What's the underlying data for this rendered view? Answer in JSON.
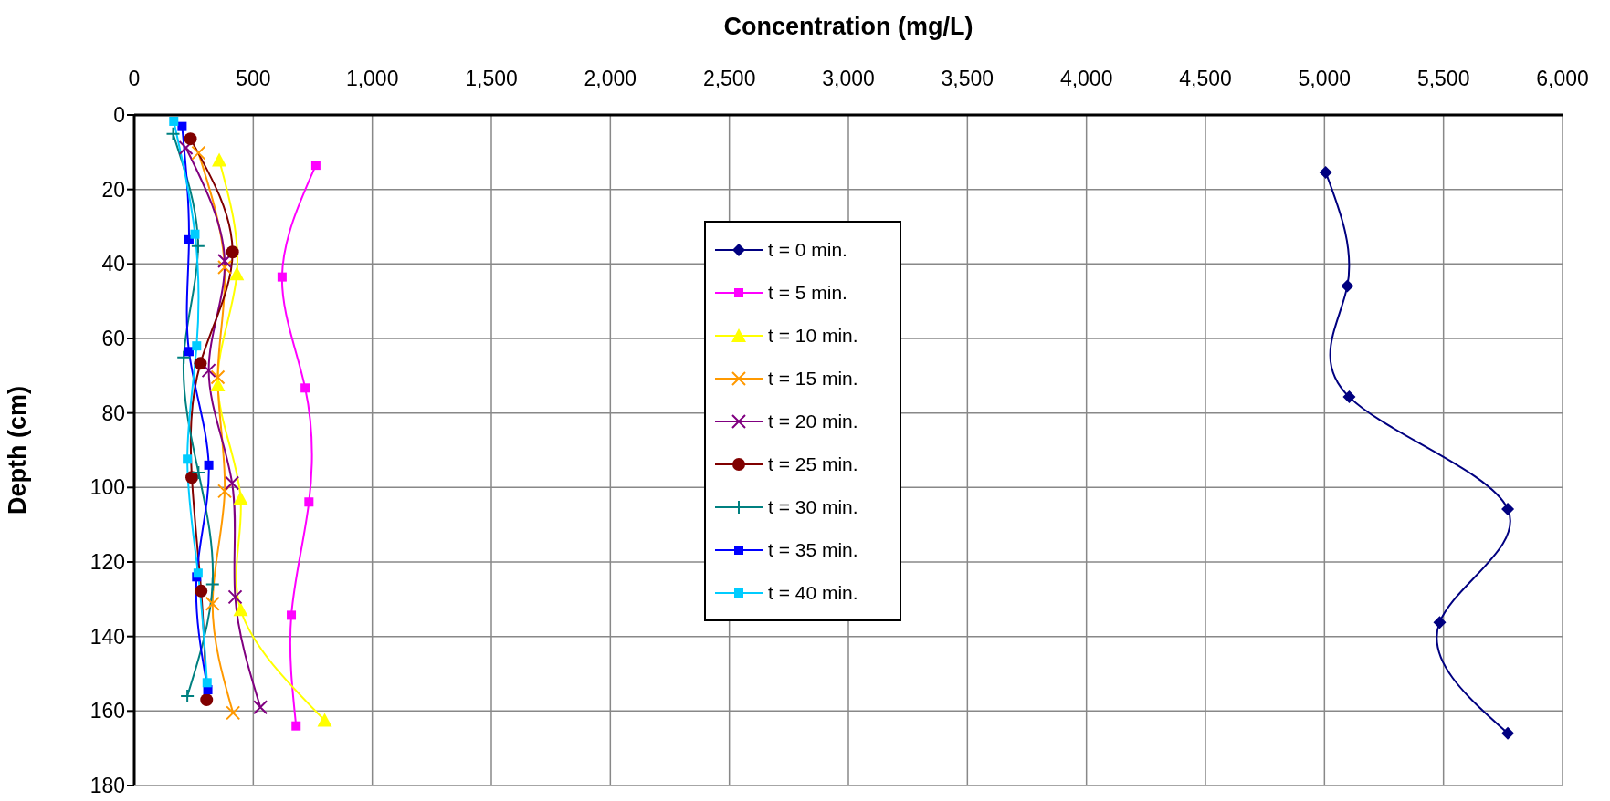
{
  "chart_data": {
    "type": "line",
    "xlabel": "Concentration (mg/L)",
    "ylabel": "Depth (cm)",
    "xlim": [
      0,
      6000
    ],
    "xticks": [
      0,
      500,
      {
        "value": 1000,
        "label": "1,000"
      },
      {
        "value": 1500,
        "label": "1,500"
      },
      {
        "value": 2000,
        "label": "2,000"
      },
      {
        "value": 2500,
        "label": "2,500"
      },
      {
        "value": 3000,
        "label": "3,000"
      },
      {
        "value": 3500,
        "label": "3,500"
      },
      {
        "value": 4000,
        "label": "4,000"
      },
      {
        "value": 4500,
        "label": "4,500"
      },
      {
        "value": 5000,
        "label": "5,000"
      },
      {
        "value": 5500,
        "label": "5,500"
      },
      {
        "value": 6000,
        "label": "6,000"
      }
    ],
    "ylim": [
      180,
      0
    ],
    "yticks": [
      0,
      20,
      40,
      60,
      80,
      100,
      120,
      140,
      160,
      180
    ],
    "grid": true,
    "legend": "center",
    "line_style": "solid",
    "series": [
      {
        "name": "t = 0 min.",
        "color": "#000080",
        "marker": "diamond",
        "x": [
          5005,
          5096,
          5104,
          5770,
          5484,
          5770
        ],
        "values": [
          15.4,
          45.9,
          75.7,
          105.8,
          136.2,
          166
        ]
      },
      {
        "name": "t = 5 min.",
        "color": "#ff00ff",
        "marker": "square",
        "x": [
          763,
          621,
          718,
          734,
          660,
          680
        ],
        "values": [
          13.5,
          43.5,
          73.3,
          103.9,
          134.3,
          164
        ]
      },
      {
        "name": "t = 10 min.",
        "color": "#ffff00",
        "marker": "triangle",
        "x": [
          357,
          431,
          351,
          447,
          447,
          800
        ],
        "values": [
          12.1,
          42.7,
          72.5,
          102.9,
          132.8,
          162.5
        ]
      },
      {
        "name": "t = 15 min.",
        "color": "#ff9900",
        "marker": "cross",
        "x": [
          270,
          380,
          351,
          380,
          329,
          415
        ],
        "values": [
          10.2,
          40.9,
          70.4,
          101,
          131.2,
          160.5
        ]
      },
      {
        "name": "t = 20 min.",
        "color": "#800080",
        "marker": "cross",
        "x": [
          217,
          380,
          313,
          411,
          424,
          530
        ],
        "values": [
          8.8,
          39.2,
          68.6,
          98.8,
          129.4,
          159
        ]
      },
      {
        "name": "t = 25 min.",
        "color": "#800000",
        "marker": "circle",
        "x": [
          236,
          413,
          278,
          242,
          281,
          304
        ],
        "values": [
          6.4,
          36.8,
          66.7,
          97.3,
          127.8,
          157
        ]
      },
      {
        "name": "t = 30 min.",
        "color": "#008080",
        "marker": "plus",
        "x": [
          163,
          268,
          208,
          270,
          329,
          223
        ],
        "values": [
          5.1,
          35.2,
          65.1,
          96,
          126,
          156
        ]
      },
      {
        "name": "t = 35 min.",
        "color": "#0000ff",
        "marker": "square",
        "x": [
          201,
          230,
          230,
          313,
          262,
          309
        ],
        "values": [
          3.1,
          33.5,
          63.5,
          94,
          124,
          154.3
        ]
      },
      {
        "name": "t = 40 min.",
        "color": "#00ccff",
        "marker": "square",
        "x": [
          166,
          255,
          262,
          223,
          268,
          306
        ],
        "values": [
          1.7,
          32,
          62,
          92.4,
          123,
          152.4
        ]
      }
    ]
  }
}
